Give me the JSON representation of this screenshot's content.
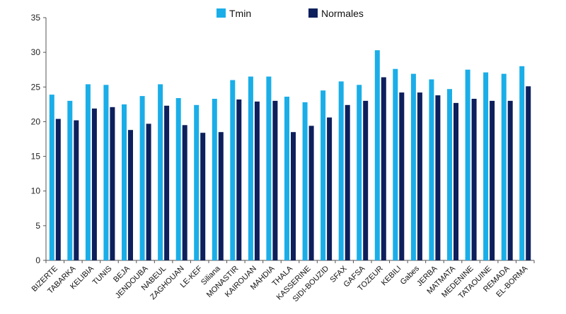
{
  "chart_data": {
    "type": "bar",
    "title": "",
    "xlabel": "",
    "ylabel": "",
    "ylim": [
      0,
      35
    ],
    "yticks": [
      "0",
      "5",
      "10",
      "15",
      "20",
      "25",
      "30",
      "35"
    ],
    "grid": false,
    "legend_position": "top-center",
    "categories": [
      "BIZERTE",
      "TABARKA",
      "KELIBIA",
      "TUNIS",
      "BEJA",
      "JENDOUBA",
      "NABEUL",
      "ZAGHOUAN",
      "LE-KEF",
      "Siliana",
      "MONASTIR",
      "KAIROUAN",
      "MAHDIA",
      "THALA",
      "KASSERINE",
      "SIDI-BOUZID",
      "SFAX",
      "GAFSA",
      "TOZEUR",
      "KEBILI",
      "Gabes",
      "JERBA",
      "MATMATA",
      "MEDENINE",
      "TATAOUINE",
      "REMADA",
      "EL-BORMA"
    ],
    "series": [
      {
        "name": "Tmin",
        "color": "#1aaee8",
        "values": [
          23.9,
          23.0,
          25.4,
          25.3,
          22.5,
          23.7,
          25.4,
          23.4,
          22.4,
          23.3,
          26.0,
          26.5,
          26.5,
          23.6,
          22.8,
          24.5,
          25.8,
          25.3,
          30.3,
          27.6,
          26.9,
          26.1,
          24.7,
          27.5,
          27.1,
          26.9,
          28.0
        ]
      },
      {
        "name": "Normales",
        "color": "#0d1f5c",
        "values": [
          20.4,
          20.2,
          21.9,
          22.1,
          18.8,
          19.7,
          22.3,
          19.5,
          18.4,
          18.5,
          23.2,
          22.9,
          23.0,
          18.5,
          19.4,
          20.6,
          22.4,
          23.0,
          26.4,
          24.2,
          24.2,
          23.8,
          22.7,
          23.3,
          23.0,
          23.0,
          25.1
        ]
      }
    ]
  }
}
